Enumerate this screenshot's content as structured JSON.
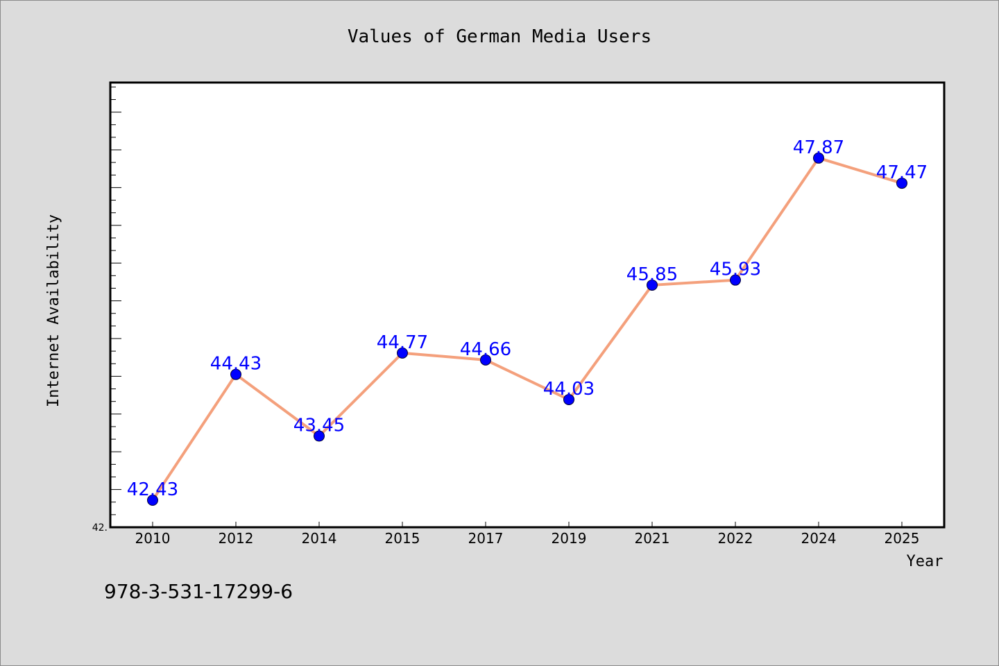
{
  "chart_data": {
    "type": "line",
    "title": "Values of German Media Users",
    "xlabel": "Year",
    "ylabel": "Internet Availability",
    "categories": [
      "2010",
      "2012",
      "2014",
      "2015",
      "2017",
      "2019",
      "2021",
      "2022",
      "2024",
      "2025"
    ],
    "series": [
      {
        "values": [
          42.43,
          44.43,
          43.45,
          44.77,
          44.66,
          44.03,
          45.85,
          45.93,
          47.87,
          47.47
        ],
        "labels": [
          "42.43",
          "44.43",
          "43.45",
          "44.77",
          "44.66",
          "44.03",
          "45.85",
          "45.93",
          "47.87",
          "47.47"
        ]
      }
    ],
    "ylim": [
      42.0,
      49.07
    ],
    "y_tick_label": "42.",
    "grid": false,
    "line_color": "#f4a07c",
    "marker_color": "#0000ff",
    "label_color": "#0000ff"
  },
  "footer": {
    "isbn": "978-3-531-17299-6"
  }
}
